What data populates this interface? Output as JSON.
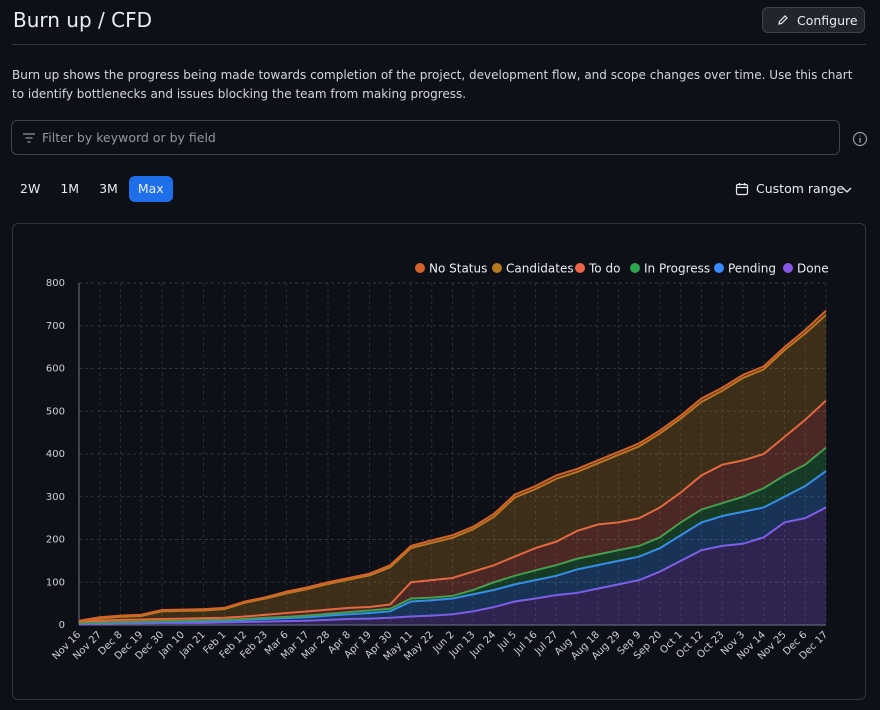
{
  "header": {
    "title": "Burn up / CFD",
    "button": "Configure"
  },
  "description": "Burn up shows the progress being made towards completion of the project, development flow, and scope changes over time. Use this chart to identify bottlenecks and issues blocking the team from making progress.",
  "filter": {
    "placeholder": "Filter by keyword or by field"
  },
  "ranges": {
    "tabs": [
      "2W",
      "1M",
      "3M",
      "Max"
    ],
    "active": 3,
    "custom": "Custom range"
  },
  "chart_data": {
    "type": "stacked-area",
    "categories": [
      "Nov 16",
      "Nov 27",
      "Dec 8",
      "Dec 19",
      "Dec 30",
      "Jan 10",
      "Jan 21",
      "Feb 1",
      "Feb 12",
      "Feb 23",
      "Mar 6",
      "Mar 17",
      "Mar 28",
      "Apr 8",
      "Apr 19",
      "Apr 30",
      "May 11",
      "May 22",
      "Jun 2",
      "Jun 13",
      "Jun 24",
      "Jul 5",
      "Jul 16",
      "Jul 27",
      "Aug 7",
      "Aug 18",
      "Aug 29",
      "Sep 9",
      "Sep 20",
      "Oct 1",
      "Oct 12",
      "Oct 23",
      "Nov 3",
      "Nov 14",
      "Nov 25",
      "Dec 6",
      "Dec 17"
    ],
    "series": [
      {
        "name": "No Status",
        "color": "#d4622b",
        "values": [
          1,
          3,
          3,
          3,
          3,
          3,
          3,
          3,
          3,
          3,
          4,
          4,
          4,
          4,
          4,
          5,
          5,
          6,
          6,
          6,
          7,
          7,
          7,
          8,
          7,
          7,
          7,
          7,
          7,
          7,
          8,
          7,
          7,
          7,
          7,
          8,
          10
        ]
      },
      {
        "name": "Candidates",
        "color": "#b7791f",
        "values": [
          1,
          5,
          7,
          8,
          18,
          18,
          18,
          20,
          32,
          38,
          46,
          52,
          60,
          66,
          74,
          87,
          80,
          87,
          94,
          99,
          113,
          138,
          138,
          147,
          138,
          143,
          158,
          168,
          173,
          173,
          172,
          173,
          193,
          198,
          203,
          202,
          200
        ]
      },
      {
        "name": "To do",
        "color": "#ec6547",
        "values": [
          3,
          4,
          5,
          5,
          5,
          5,
          5,
          5,
          6,
          7,
          9,
          10,
          10,
          10,
          8,
          10,
          38,
          41,
          42,
          43,
          40,
          45,
          52,
          55,
          65,
          70,
          65,
          65,
          70,
          70,
          80,
          90,
          85,
          80,
          90,
          105,
          110
        ]
      },
      {
        "name": "In Progress",
        "color": "#2da44e",
        "values": [
          1,
          1,
          1,
          1,
          1,
          2,
          2,
          2,
          2,
          3,
          3,
          4,
          4,
          5,
          6,
          6,
          7,
          6,
          6,
          10,
          18,
          20,
          23,
          25,
          25,
          25,
          25,
          25,
          25,
          30,
          30,
          30,
          35,
          45,
          50,
          50,
          55
        ]
      },
      {
        "name": "Pending",
        "color": "#388bfd",
        "values": [
          2,
          2,
          2,
          3,
          3,
          3,
          4,
          4,
          5,
          6,
          7,
          8,
          10,
          11,
          13,
          15,
          35,
          36,
          37,
          40,
          40,
          40,
          43,
          45,
          55,
          55,
          55,
          55,
          55,
          60,
          65,
          70,
          75,
          70,
          60,
          75,
          85
        ]
      },
      {
        "name": "Done",
        "color": "#8957e5",
        "values": [
          2,
          3,
          4,
          4,
          5,
          5,
          5,
          6,
          7,
          8,
          9,
          10,
          12,
          14,
          15,
          17,
          20,
          22,
          25,
          32,
          42,
          55,
          62,
          70,
          75,
          85,
          95,
          105,
          125,
          150,
          175,
          185,
          190,
          205,
          240,
          250,
          275
        ]
      }
    ],
    "stacked": true,
    "ylim": [
      0,
      800
    ],
    "yticks": [
      0,
      100,
      200,
      300,
      400,
      500,
      600,
      700,
      800
    ],
    "grid": true
  }
}
